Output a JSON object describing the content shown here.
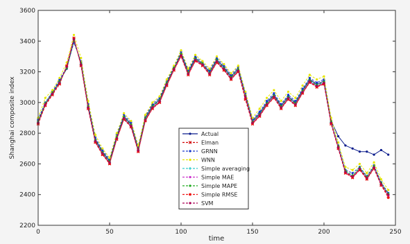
{
  "chart_data": {
    "type": "line",
    "xlabel": "time",
    "ylabel": "Shanghai composite index",
    "xlim": [
      0,
      250
    ],
    "ylim": [
      2200,
      3600
    ],
    "x_ticks": [
      "0",
      "50",
      "100",
      "150",
      "200",
      "250"
    ],
    "y_ticks": [
      "2200",
      "2400",
      "2600",
      "2800",
      "3000",
      "3200",
      "3400",
      "3600"
    ],
    "grid": false,
    "legend_position": "lower-center",
    "x": [
      0,
      5,
      10,
      15,
      20,
      25,
      30,
      35,
      40,
      45,
      50,
      55,
      60,
      65,
      70,
      75,
      80,
      85,
      90,
      95,
      100,
      105,
      110,
      115,
      120,
      125,
      130,
      135,
      140,
      145,
      150,
      155,
      160,
      165,
      170,
      175,
      180,
      185,
      190,
      195,
      200,
      205,
      210,
      215,
      220,
      225,
      230,
      235,
      240,
      245
    ],
    "series": [
      {
        "name": "Actual",
        "color": "#0b1c8c",
        "marker": "circle",
        "values": [
          2880,
          2990,
          3060,
          3140,
          3220,
          3400,
          3260,
          2980,
          2760,
          2680,
          2620,
          2780,
          2910,
          2860,
          2700,
          2900,
          2980,
          3020,
          3130,
          3220,
          3320,
          3200,
          3290,
          3250,
          3200,
          3280,
          3230,
          3170,
          3220,
          3050,
          2880,
          2930,
          3000,
          3050,
          2980,
          3040,
          3000,
          3080,
          3150,
          3120,
          3140,
          2880,
          2780,
          2720,
          2700,
          2680,
          2680,
          2660,
          2690,
          2660
        ]
      },
      {
        "name": "Elman",
        "color": "#d10000",
        "marker": "x",
        "values": [
          2860,
          2980,
          3050,
          3120,
          3240,
          3420,
          3240,
          2960,
          2740,
          2660,
          2600,
          2760,
          2890,
          2840,
          2680,
          2880,
          2960,
          3000,
          3110,
          3210,
          3300,
          3180,
          3270,
          3240,
          3180,
          3260,
          3210,
          3150,
          3200,
          3020,
          2860,
          2910,
          2980,
          3030,
          2960,
          3020,
          2980,
          3060,
          3130,
          3100,
          3120,
          2860,
          2700,
          2540,
          2510,
          2560,
          2500,
          2570,
          2460,
          2390
        ]
      },
      {
        "name": "GRNN",
        "color": "#1a3acc",
        "marker": "circle",
        "values": [
          2890,
          3000,
          3070,
          3150,
          3230,
          3390,
          3270,
          2990,
          2770,
          2690,
          2630,
          2790,
          2920,
          2870,
          2710,
          2910,
          2990,
          3030,
          3140,
          3230,
          3330,
          3210,
          3300,
          3260,
          3210,
          3290,
          3240,
          3180,
          3230,
          3060,
          2890,
          2940,
          3010,
          3060,
          2990,
          3050,
          3010,
          3090,
          3160,
          3130,
          3150,
          2870,
          2720,
          2560,
          2540,
          2580,
          2520,
          2590,
          2480,
          2410
        ]
      },
      {
        "name": "WNN",
        "color": "#e6e600",
        "marker": "circle",
        "values": [
          2900,
          3030,
          3080,
          3160,
          3260,
          3440,
          3290,
          3010,
          2790,
          2700,
          2640,
          2800,
          2930,
          2880,
          2720,
          2920,
          3000,
          3040,
          3150,
          3240,
          3340,
          3220,
          3310,
          3270,
          3220,
          3300,
          3250,
          3190,
          3240,
          3070,
          2900,
          2960,
          3030,
          3080,
          3010,
          3070,
          3030,
          3110,
          3180,
          3150,
          3170,
          2900,
          2740,
          2580,
          2560,
          2600,
          2540,
          2610,
          2500,
          2430
        ]
      },
      {
        "name": "Simple averaging",
        "color": "#33cccc",
        "marker": "plus",
        "values": [
          2870,
          2990,
          3060,
          3130,
          3230,
          3410,
          3250,
          2970,
          2750,
          2670,
          2610,
          2770,
          2900,
          2850,
          2690,
          2890,
          2970,
          3010,
          3120,
          3220,
          3310,
          3190,
          3280,
          3250,
          3190,
          3270,
          3220,
          3160,
          3210,
          3040,
          2870,
          2920,
          2990,
          3040,
          2970,
          3030,
          2990,
          3070,
          3140,
          3110,
          3130,
          2870,
          2710,
          2550,
          2520,
          2570,
          2510,
          2580,
          2470,
          2400
        ]
      },
      {
        "name": "Simple MAE",
        "color": "#cc33cc",
        "marker": "circle",
        "values": [
          2865,
          2985,
          3055,
          3125,
          3235,
          3415,
          3245,
          2965,
          2745,
          2665,
          2605,
          2765,
          2895,
          2845,
          2685,
          2885,
          2965,
          3005,
          3115,
          3215,
          3305,
          3185,
          3275,
          3245,
          3185,
          3265,
          3215,
          3155,
          3205,
          3035,
          2865,
          2915,
          2985,
          3035,
          2965,
          3025,
          2985,
          3065,
          3135,
          3105,
          3125,
          2865,
          2705,
          2545,
          2515,
          2565,
          2505,
          2575,
          2465,
          2395
        ]
      },
      {
        "name": "Simple MAPE",
        "color": "#22aa22",
        "marker": "circle",
        "values": [
          2875,
          2995,
          3065,
          3135,
          3225,
          3405,
          3255,
          2975,
          2755,
          2675,
          2615,
          2775,
          2905,
          2855,
          2695,
          2895,
          2975,
          3015,
          3125,
          3225,
          3315,
          3195,
          3285,
          3255,
          3195,
          3275,
          3225,
          3165,
          3215,
          3045,
          2875,
          2925,
          2995,
          3045,
          2975,
          3035,
          2995,
          3075,
          3145,
          3115,
          3135,
          2875,
          2715,
          2555,
          2525,
          2575,
          2515,
          2585,
          2475,
          2405
        ]
      },
      {
        "name": "Simple RMSE",
        "color": "#ee1111",
        "marker": "star",
        "values": [
          2862,
          2982,
          3052,
          3122,
          3238,
          3418,
          3242,
          2962,
          2742,
          2662,
          2602,
          2762,
          2892,
          2842,
          2682,
          2882,
          2962,
          3002,
          3112,
          3212,
          3302,
          3182,
          3272,
          3242,
          3182,
          3262,
          3212,
          3152,
          3202,
          3022,
          2862,
          2912,
          2982,
          3032,
          2962,
          3022,
          2982,
          3062,
          3132,
          3102,
          3122,
          2862,
          2702,
          2542,
          2512,
          2562,
          2502,
          2572,
          2462,
          2380
        ]
      },
      {
        "name": "SVM",
        "color": "#aa0055",
        "marker": "circle",
        "values": [
          2868,
          2988,
          3058,
          3128,
          3232,
          3412,
          3248,
          2968,
          2748,
          2668,
          2608,
          2768,
          2898,
          2848,
          2688,
          2888,
          2968,
          3008,
          3118,
          3218,
          3308,
          3188,
          3278,
          3248,
          3188,
          3268,
          3218,
          3158,
          3208,
          3038,
          2868,
          2918,
          2988,
          3038,
          2968,
          3028,
          2988,
          3068,
          3138,
          3108,
          3128,
          2868,
          2708,
          2548,
          2518,
          2568,
          2508,
          2578,
          2468,
          2398
        ]
      }
    ]
  }
}
